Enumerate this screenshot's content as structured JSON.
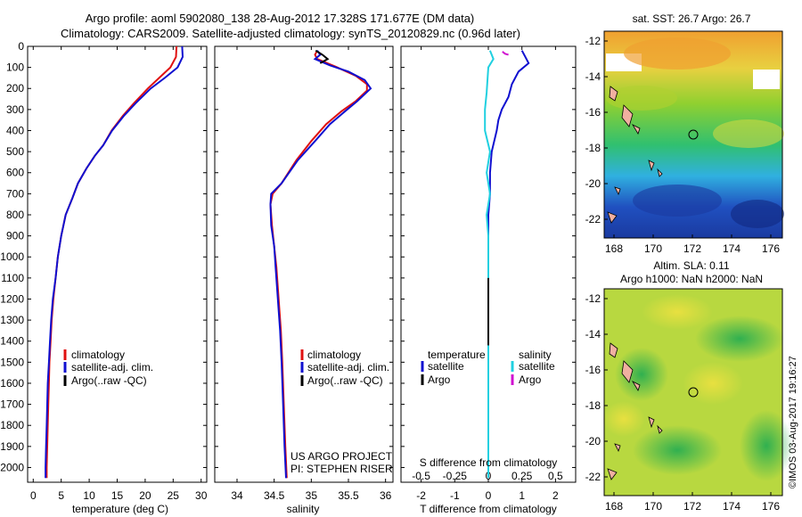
{
  "header": {
    "line1": "Argo profile: aoml 5902080_138 28-Aug-2012 17.328S 171.677E (DM data)",
    "line2": "Climatology: CARS2009. Satellite-adjusted climatology: synTS_20120829.nc (0.96d later)"
  },
  "credits": {
    "project": "US ARGO PROJECT",
    "pi": "PI: STEPHEN RISER",
    "stamp": "©IMOS 03-Aug-2017 19:16:27"
  },
  "colors": {
    "climatology": "#e01010",
    "satellite": "#1010d0",
    "argo": "#000000",
    "satellite_salinity": "#20d0e0",
    "argo_salinity": "#d010d0"
  },
  "chart_data": [
    {
      "id": "temperature",
      "type": "line",
      "xlabel": "temperature (deg C)",
      "ylabel": "",
      "xlim": [
        -1,
        31
      ],
      "ylim": [
        2070,
        0
      ],
      "xticks": [
        0,
        5,
        10,
        15,
        20,
        25,
        30
      ],
      "yticks": [
        0,
        100,
        200,
        300,
        400,
        500,
        600,
        700,
        800,
        900,
        1000,
        1100,
        1200,
        1300,
        1400,
        1500,
        1600,
        1700,
        1800,
        1900,
        2000
      ],
      "legend": [
        "climatology",
        "satellite-adj. clim.",
        "Argo(..raw -QC)"
      ],
      "legend_position": "lower-left",
      "series": [
        {
          "name": "climatology",
          "color": "#e01010",
          "points": [
            [
              25.6,
              0
            ],
            [
              25.5,
              50
            ],
            [
              24.5,
              100
            ],
            [
              22.5,
              150
            ],
            [
              20.5,
              200
            ],
            [
              18,
              270
            ],
            [
              16,
              330
            ],
            [
              14,
              400
            ],
            [
              12.5,
              470
            ],
            [
              11,
              520
            ],
            [
              9.5,
              580
            ],
            [
              8,
              650
            ],
            [
              7,
              720
            ],
            [
              5.8,
              800
            ],
            [
              5,
              900
            ],
            [
              4.4,
              1000
            ],
            [
              4,
              1100
            ],
            [
              3.6,
              1200
            ],
            [
              3.3,
              1300
            ],
            [
              3.1,
              1400
            ],
            [
              2.9,
              1500
            ],
            [
              2.8,
              1600
            ],
            [
              2.7,
              1700
            ],
            [
              2.6,
              1800
            ],
            [
              2.5,
              1900
            ],
            [
              2.4,
              2000
            ],
            [
              2.4,
              2050
            ]
          ]
        },
        {
          "name": "satellite-adj. clim.",
          "color": "#1010d0",
          "points": [
            [
              26.6,
              0
            ],
            [
              26.7,
              50
            ],
            [
              25.8,
              100
            ],
            [
              23.5,
              150
            ],
            [
              21,
              200
            ],
            [
              18.3,
              270
            ],
            [
              16.2,
              330
            ],
            [
              14.1,
              400
            ],
            [
              12.5,
              470
            ],
            [
              11,
              520
            ],
            [
              9.5,
              580
            ],
            [
              8,
              650
            ],
            [
              7,
              720
            ],
            [
              5.8,
              800
            ],
            [
              5,
              900
            ],
            [
              4.4,
              1000
            ],
            [
              4,
              1100
            ],
            [
              3.5,
              1200
            ],
            [
              3.2,
              1300
            ],
            [
              3,
              1400
            ],
            [
              2.8,
              1500
            ],
            [
              2.6,
              1600
            ],
            [
              2.5,
              1700
            ],
            [
              2.4,
              1800
            ],
            [
              2.3,
              1900
            ],
            [
              2.2,
              2000
            ],
            [
              2.2,
              2050
            ]
          ]
        }
      ]
    },
    {
      "id": "salinity",
      "type": "line",
      "xlabel": "salinity",
      "ylabel": "",
      "xlim": [
        33.7,
        36.1
      ],
      "ylim": [
        2070,
        0
      ],
      "xticks": [
        34,
        34.5,
        35,
        35.5,
        36
      ],
      "legend": [
        "climatology",
        "satellite-adj. clim.",
        "Argo(..raw -QC)"
      ],
      "legend_position": "lower-right",
      "series": [
        {
          "name": "climatology",
          "color": "#e01010",
          "points": [
            [
              35.08,
              20
            ],
            [
              35.05,
              40
            ],
            [
              35.08,
              60
            ],
            [
              35.35,
              100
            ],
            [
              35.6,
              140
            ],
            [
              35.75,
              180
            ],
            [
              35.75,
              210
            ],
            [
              35.6,
              260
            ],
            [
              35.4,
              310
            ],
            [
              35.2,
              370
            ],
            [
              35.0,
              450
            ],
            [
              34.8,
              540
            ],
            [
              34.6,
              650
            ],
            [
              34.48,
              700
            ],
            [
              34.45,
              750
            ],
            [
              34.47,
              850
            ],
            [
              34.5,
              950
            ],
            [
              34.53,
              1050
            ],
            [
              34.56,
              1200
            ],
            [
              34.59,
              1350
            ],
            [
              34.61,
              1500
            ],
            [
              34.63,
              1700
            ],
            [
              34.65,
              1900
            ],
            [
              34.67,
              2050
            ]
          ]
        },
        {
          "name": "satellite-adj. clim.",
          "color": "#1010d0",
          "points": [
            [
              35.08,
              20
            ],
            [
              35.12,
              40
            ],
            [
              35.05,
              60
            ],
            [
              35.25,
              90
            ],
            [
              35.5,
              120
            ],
            [
              35.72,
              160
            ],
            [
              35.8,
              200
            ],
            [
              35.62,
              260
            ],
            [
              35.45,
              310
            ],
            [
              35.25,
              370
            ],
            [
              35.05,
              450
            ],
            [
              34.82,
              540
            ],
            [
              34.6,
              650
            ],
            [
              34.46,
              700
            ],
            [
              34.45,
              750
            ],
            [
              34.46,
              850
            ],
            [
              34.5,
              950
            ],
            [
              34.52,
              1050
            ],
            [
              34.55,
              1200
            ],
            [
              34.58,
              1350
            ],
            [
              34.6,
              1500
            ],
            [
              34.62,
              1700
            ],
            [
              34.64,
              1900
            ],
            [
              34.66,
              2050
            ]
          ]
        },
        {
          "name": "Argo(..raw -QC)",
          "color": "#000000",
          "points": [
            [
              35.06,
              20
            ],
            [
              35.15,
              40
            ],
            [
              35.22,
              60
            ],
            [
              35.12,
              80
            ]
          ]
        }
      ]
    },
    {
      "id": "difference",
      "type": "line",
      "xlabel": "T difference from climatology",
      "xlabel2": "S difference from climatology",
      "xlim": [
        -2.6,
        2.6
      ],
      "ylim": [
        2070,
        0
      ],
      "xticks": [
        -2,
        -1,
        0,
        1,
        2
      ],
      "xticks_s": [
        -0.5,
        -0.25,
        0,
        0.25,
        0.5
      ],
      "legend_temperature_title": "temperature",
      "legend_salinity_title": "salinity",
      "legend": [
        "satellite",
        "Argo",
        "satellite",
        "Argo"
      ],
      "legend_position": "lower",
      "series": [
        {
          "name": "temperature satellite",
          "color": "#1010d0",
          "points": [
            [
              1.0,
              20
            ],
            [
              1.1,
              50
            ],
            [
              1.2,
              80
            ],
            [
              0.9,
              120
            ],
            [
              0.7,
              180
            ],
            [
              0.6,
              240
            ],
            [
              0.4,
              300
            ],
            [
              0.3,
              350
            ],
            [
              0.25,
              400
            ],
            [
              0.1,
              500
            ],
            [
              0.05,
              600
            ],
            [
              0.05,
              700
            ],
            [
              0.0,
              800
            ],
            [
              0.0,
              900
            ],
            [
              0.0,
              1000
            ],
            [
              0.0,
              1100
            ],
            [
              0.0,
              1300
            ],
            [
              0.0,
              1600
            ],
            [
              0.0,
              2000
            ],
            [
              0.0,
              2050
            ]
          ]
        },
        {
          "name": "salinity satellite",
          "color": "#20d0e0",
          "points": [
            [
              0.05,
              20
            ],
            [
              0.15,
              60
            ],
            [
              0.0,
              100
            ],
            [
              -0.02,
              150
            ],
            [
              -0.05,
              220
            ],
            [
              -0.1,
              300
            ],
            [
              -0.1,
              400
            ],
            [
              0.05,
              500
            ],
            [
              -0.05,
              600
            ],
            [
              0.05,
              700
            ],
            [
              -0.05,
              800
            ],
            [
              0.0,
              900
            ],
            [
              0.0,
              1000
            ],
            [
              0.0,
              1200
            ],
            [
              0.0,
              1500
            ],
            [
              0.0,
              2000
            ],
            [
              0.0,
              2050
            ]
          ]
        },
        {
          "name": "Argo salinity",
          "color": "#d010d0",
          "points": [
            [
              0.42,
              25
            ],
            [
              0.5,
              35
            ],
            [
              0.6,
              40
            ]
          ]
        }
      ]
    }
  ],
  "maps": {
    "sst": {
      "title": "sat. SST: 26.7 Argo: 26.7",
      "xticks": [
        "168",
        "170",
        "172",
        "174",
        "176"
      ],
      "yticks": [
        "-12",
        "-14",
        "-16",
        "-18",
        "-20",
        "-22"
      ],
      "marker_lon": 171.677,
      "marker_lat": -17.328
    },
    "sla": {
      "title1": "Altim. SLA: 0.11",
      "title2": "Argo h1000: NaN h2000: NaN",
      "xticks": [
        "168",
        "170",
        "172",
        "174",
        "176"
      ],
      "yticks": [
        "-12",
        "-14",
        "-16",
        "-18",
        "-20",
        "-22"
      ],
      "marker_lon": 171.677,
      "marker_lat": -17.328
    }
  }
}
